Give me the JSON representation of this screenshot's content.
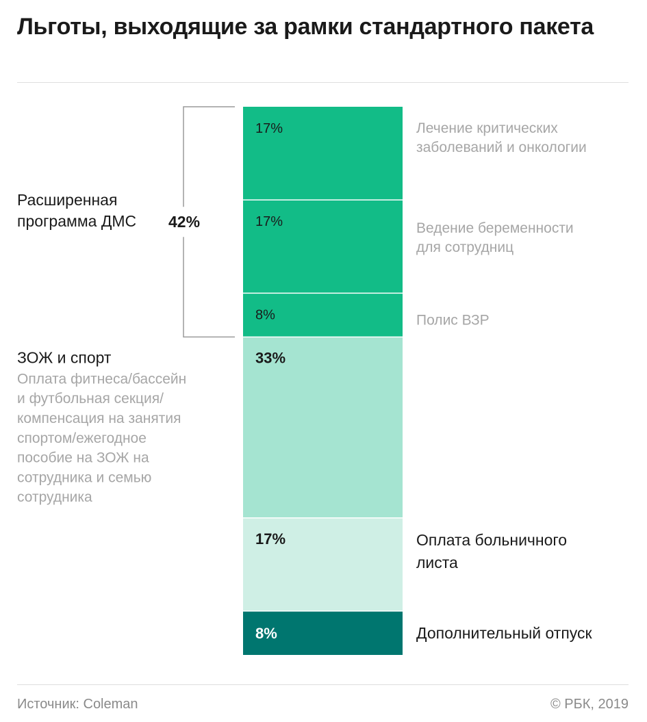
{
  "title": "Льготы, выходящие за рамки стандартного пакета",
  "source": "Источник: Coleman",
  "copyright": "© РБК, 2019",
  "colors": {
    "dark_green": "#12bc87",
    "mid_green": "#a5e4d1",
    "light_green": "#cfefe5",
    "teal": "#00766f",
    "label_gray": "#a6a6a6",
    "text": "#1a1a1a"
  },
  "chart_data": {
    "type": "bar",
    "stacked": true,
    "unit": "%",
    "segments": [
      {
        "value": 17,
        "value_label": "17%",
        "label": "Лечение критических заболеваний и онкологии",
        "group": "dms"
      },
      {
        "value": 17,
        "value_label": "17%",
        "label": "Ведение беременности для сотрудниц",
        "group": "dms"
      },
      {
        "value": 8,
        "value_label": "8%",
        "label": "Полис ВЗР",
        "group": "dms"
      },
      {
        "value": 33,
        "value_label": "33%",
        "label": "",
        "group": "zozh"
      },
      {
        "value": 17,
        "value_label": "17%",
        "label": "Оплата больничного листа",
        "group": "sick"
      },
      {
        "value": 8,
        "value_label": "8%",
        "label": "Дополнительный отпуск",
        "group": "vacation"
      }
    ],
    "groups": [
      {
        "id": "dms",
        "label": "Расширенная программа ДМС",
        "total_label": "42%"
      },
      {
        "id": "zozh",
        "label": "ЗОЖ и спорт",
        "description": "Оплата фитнеса/бассейн и футбольная секция/ компенсация на занятия спортом/ежегодное пособие на ЗОЖ на сотрудника и семью сотрудника"
      }
    ]
  }
}
